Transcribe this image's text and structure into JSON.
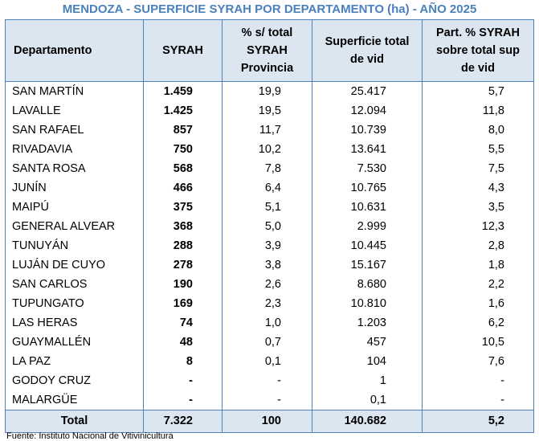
{
  "title": "MENDOZA - SUPERFICIE SYRAH POR DEPARTAMENTO (ha) - AÑO 2025",
  "headers": {
    "dep": "Departamento",
    "syrah": "SYRAH",
    "pct_line1": "% s/ total",
    "pct_line2": "SYRAH",
    "pct_line3": "Provincia",
    "sup_line1": "Superficie  total",
    "sup_line2": "de vid",
    "part_line1": "Part. % SYRAH",
    "part_line2": "sobre total sup",
    "part_line3": "de vid"
  },
  "rows": [
    {
      "dep": "SAN MARTÍN",
      "syrah": "1.459",
      "pct": "19,9",
      "sup": "25.417",
      "part": "5,7"
    },
    {
      "dep": "LAVALLE",
      "syrah": "1.425",
      "pct": "19,5",
      "sup": "12.094",
      "part": "11,8"
    },
    {
      "dep": "SAN RAFAEL",
      "syrah": "857",
      "pct": "11,7",
      "sup": "10.739",
      "part": "8,0"
    },
    {
      "dep": "RIVADAVIA",
      "syrah": "750",
      "pct": "10,2",
      "sup": "13.641",
      "part": "5,5"
    },
    {
      "dep": "SANTA ROSA",
      "syrah": "568",
      "pct": "7,8",
      "sup": "7.530",
      "part": "7,5"
    },
    {
      "dep": "JUNÍN",
      "syrah": "466",
      "pct": "6,4",
      "sup": "10.765",
      "part": "4,3"
    },
    {
      "dep": "MAIPÚ",
      "syrah": "375",
      "pct": "5,1",
      "sup": "10.631",
      "part": "3,5"
    },
    {
      "dep": "GENERAL ALVEAR",
      "syrah": "368",
      "pct": "5,0",
      "sup": "2.999",
      "part": "12,3"
    },
    {
      "dep": "TUNUYÁN",
      "syrah": "288",
      "pct": "3,9",
      "sup": "10.445",
      "part": "2,8"
    },
    {
      "dep": "LUJÁN DE CUYO",
      "syrah": "278",
      "pct": "3,8",
      "sup": "15.167",
      "part": "1,8"
    },
    {
      "dep": "SAN CARLOS",
      "syrah": "190",
      "pct": "2,6",
      "sup": "8.680",
      "part": "2,2"
    },
    {
      "dep": "TUPUNGATO",
      "syrah": "169",
      "pct": "2,3",
      "sup": "10.810",
      "part": "1,6"
    },
    {
      "dep": "LAS HERAS",
      "syrah": "74",
      "pct": "1,0",
      "sup": "1.203",
      "part": "6,2"
    },
    {
      "dep": "GUAYMALLÉN",
      "syrah": "48",
      "pct": "0,7",
      "sup": "457",
      "part": "10,5"
    },
    {
      "dep": "LA PAZ",
      "syrah": "8",
      "pct": "0,1",
      "sup": "104",
      "part": "7,6"
    },
    {
      "dep": "GODOY CRUZ",
      "syrah": "-",
      "pct": "-",
      "sup": "1",
      "part": "-"
    },
    {
      "dep": "MALARGÜE",
      "syrah": "-",
      "pct": "-",
      "sup": "0,1",
      "part": "-"
    }
  ],
  "total": {
    "label": "Total",
    "syrah": "7.322",
    "pct": "100",
    "sup": "140.682",
    "part": "5,2"
  },
  "footnote": "Fuente: Instituto Nacional de Vitivinicultura"
}
